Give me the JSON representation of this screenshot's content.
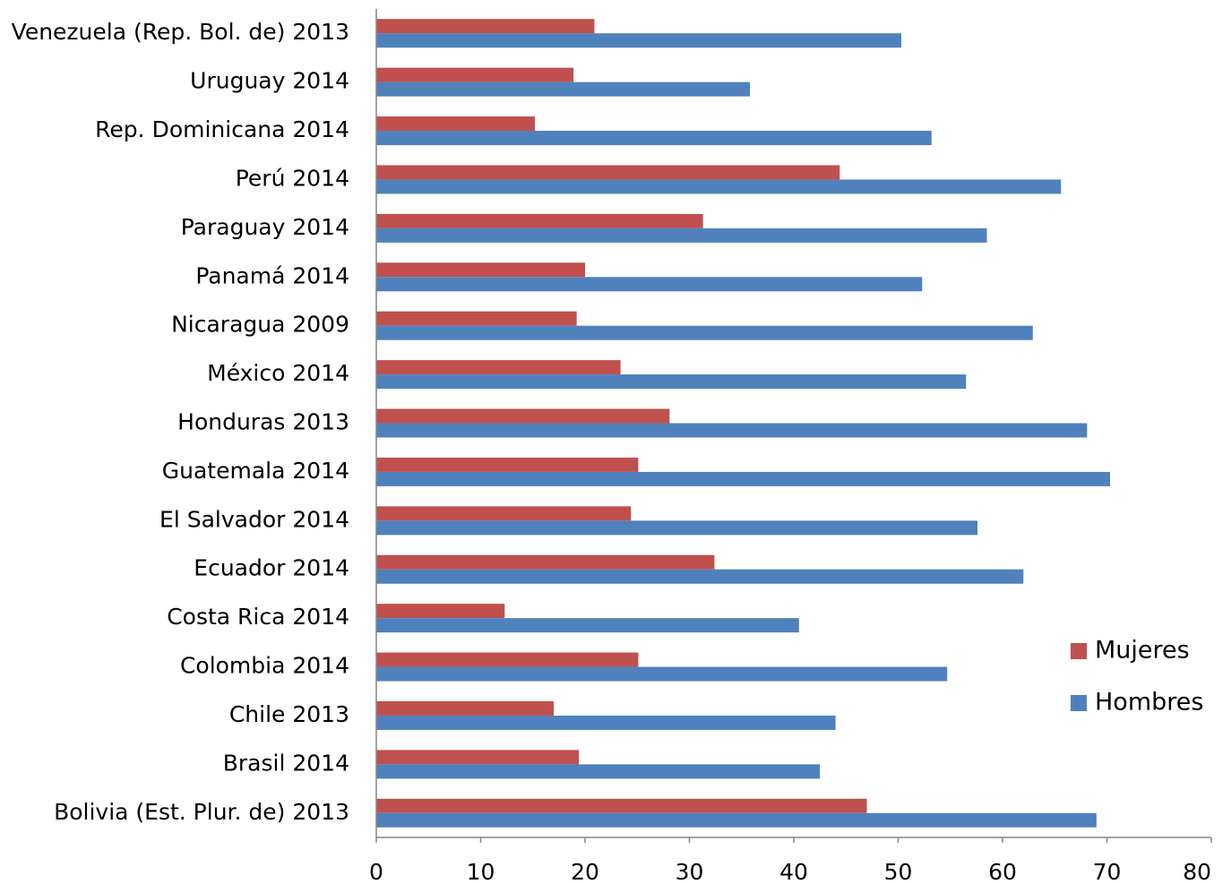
{
  "chart_data": {
    "type": "hbar",
    "categories": [
      "Venezuela (Rep. Bol. de) 2013",
      "Uruguay 2014",
      "Rep. Dominicana 2014",
      "Perú 2014",
      "Paraguay 2014",
      "Panamá 2014",
      "Nicaragua 2009",
      "México 2014",
      "Honduras 2013",
      "Guatemala 2014",
      "El Salvador 2014",
      "Ecuador 2014",
      "Costa Rica 2014",
      "Colombia 2014",
      "Chile 2013",
      "Brasil 2014",
      "Bolivia (Est. Plur. de) 2013"
    ],
    "series": [
      {
        "name": "Mujeres",
        "color": "#c0504d",
        "values": [
          20.9,
          18.9,
          15.2,
          44.4,
          31.3,
          20.0,
          19.2,
          23.4,
          28.1,
          25.1,
          24.4,
          32.4,
          12.3,
          25.1,
          17.0,
          19.4,
          47.0
        ]
      },
      {
        "name": "Hombres",
        "color": "#4f81bd",
        "values": [
          50.3,
          35.8,
          53.2,
          65.6,
          58.5,
          52.3,
          62.9,
          56.5,
          68.1,
          70.3,
          57.6,
          62.0,
          40.5,
          54.7,
          44.0,
          42.5,
          69.0
        ]
      }
    ],
    "xlim": [
      0,
      80
    ],
    "xticks": [
      0,
      10,
      20,
      30,
      40,
      50,
      60,
      70,
      80
    ],
    "legend": "right",
    "grid": false
  }
}
